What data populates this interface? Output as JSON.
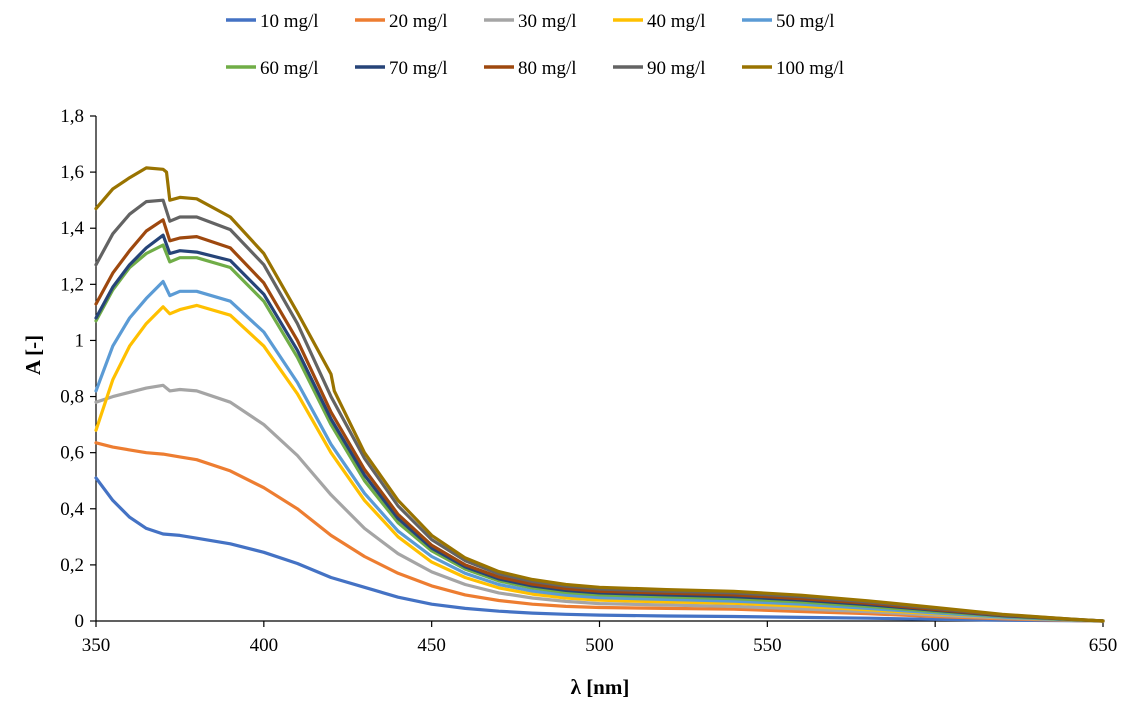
{
  "chart_data": {
    "type": "line",
    "title": "",
    "xlabel": "λ [nm]",
    "ylabel": "A [-]",
    "xlim": [
      350,
      650
    ],
    "ylim": [
      0,
      1.8
    ],
    "x_ticks": [
      "350",
      "400",
      "450",
      "500",
      "550",
      "600",
      "650"
    ],
    "y_ticks": [
      "0",
      "0,2",
      "0,4",
      "0,6",
      "0,8",
      "1",
      "1,2",
      "1,4",
      "1,6",
      "1,8"
    ],
    "grid": false,
    "legend_position": "top",
    "series": [
      {
        "name": "10 mg/l",
        "color": "#4472C4",
        "points": [
          [
            350,
            0.51
          ],
          [
            355,
            0.43
          ],
          [
            360,
            0.37
          ],
          [
            365,
            0.33
          ],
          [
            370,
            0.31
          ],
          [
            375,
            0.305
          ],
          [
            380,
            0.295
          ],
          [
            390,
            0.275
          ],
          [
            400,
            0.245
          ],
          [
            410,
            0.205
          ],
          [
            420,
            0.155
          ],
          [
            430,
            0.12
          ],
          [
            440,
            0.085
          ],
          [
            450,
            0.06
          ],
          [
            460,
            0.045
          ],
          [
            470,
            0.035
          ],
          [
            480,
            0.028
          ],
          [
            490,
            0.024
          ],
          [
            500,
            0.021
          ],
          [
            520,
            0.018
          ],
          [
            540,
            0.016
          ],
          [
            560,
            0.013
          ],
          [
            580,
            0.01
          ],
          [
            600,
            0.006
          ],
          [
            620,
            0.003
          ],
          [
            640,
            0.001
          ],
          [
            650,
            0.0
          ]
        ]
      },
      {
        "name": "20 mg/l",
        "color": "#ED7D31",
        "points": [
          [
            350,
            0.635
          ],
          [
            355,
            0.62
          ],
          [
            360,
            0.61
          ],
          [
            365,
            0.6
          ],
          [
            370,
            0.595
          ],
          [
            375,
            0.585
          ],
          [
            380,
            0.575
          ],
          [
            390,
            0.535
          ],
          [
            400,
            0.475
          ],
          [
            410,
            0.4
          ],
          [
            420,
            0.305
          ],
          [
            430,
            0.23
          ],
          [
            440,
            0.17
          ],
          [
            450,
            0.125
          ],
          [
            460,
            0.093
          ],
          [
            470,
            0.073
          ],
          [
            480,
            0.06
          ],
          [
            490,
            0.052
          ],
          [
            500,
            0.048
          ],
          [
            520,
            0.045
          ],
          [
            540,
            0.042
          ],
          [
            560,
            0.034
          ],
          [
            580,
            0.026
          ],
          [
            600,
            0.016
          ],
          [
            620,
            0.008
          ],
          [
            640,
            0.002
          ],
          [
            650,
            0.0
          ]
        ]
      },
      {
        "name": "30 mg/l",
        "color": "#A5A5A5",
        "points": [
          [
            350,
            0.78
          ],
          [
            355,
            0.8
          ],
          [
            360,
            0.815
          ],
          [
            365,
            0.83
          ],
          [
            370,
            0.84
          ],
          [
            372,
            0.82
          ],
          [
            375,
            0.825
          ],
          [
            380,
            0.82
          ],
          [
            390,
            0.78
          ],
          [
            400,
            0.7
          ],
          [
            410,
            0.59
          ],
          [
            420,
            0.45
          ],
          [
            430,
            0.33
          ],
          [
            440,
            0.24
          ],
          [
            450,
            0.175
          ],
          [
            460,
            0.13
          ],
          [
            470,
            0.1
          ],
          [
            480,
            0.082
          ],
          [
            490,
            0.07
          ],
          [
            500,
            0.062
          ],
          [
            520,
            0.057
          ],
          [
            540,
            0.052
          ],
          [
            560,
            0.043
          ],
          [
            580,
            0.033
          ],
          [
            600,
            0.021
          ],
          [
            620,
            0.011
          ],
          [
            640,
            0.003
          ],
          [
            650,
            0.0
          ]
        ]
      },
      {
        "name": "40 mg/l",
        "color": "#FFC000",
        "points": [
          [
            350,
            0.68
          ],
          [
            355,
            0.86
          ],
          [
            360,
            0.98
          ],
          [
            365,
            1.06
          ],
          [
            370,
            1.12
          ],
          [
            372,
            1.095
          ],
          [
            375,
            1.11
          ],
          [
            380,
            1.125
          ],
          [
            390,
            1.09
          ],
          [
            400,
            0.98
          ],
          [
            410,
            0.81
          ],
          [
            420,
            0.6
          ],
          [
            430,
            0.43
          ],
          [
            440,
            0.3
          ],
          [
            450,
            0.21
          ],
          [
            460,
            0.155
          ],
          [
            470,
            0.118
          ],
          [
            480,
            0.096
          ],
          [
            490,
            0.082
          ],
          [
            500,
            0.074
          ],
          [
            520,
            0.068
          ],
          [
            540,
            0.063
          ],
          [
            560,
            0.053
          ],
          [
            580,
            0.04
          ],
          [
            600,
            0.026
          ],
          [
            620,
            0.013
          ],
          [
            640,
            0.004
          ],
          [
            650,
            0.0
          ]
        ]
      },
      {
        "name": "50 mg/l",
        "color": "#5B9BD5",
        "points": [
          [
            350,
            0.82
          ],
          [
            355,
            0.98
          ],
          [
            360,
            1.08
          ],
          [
            365,
            1.15
          ],
          [
            370,
            1.21
          ],
          [
            372,
            1.16
          ],
          [
            375,
            1.175
          ],
          [
            380,
            1.175
          ],
          [
            390,
            1.14
          ],
          [
            400,
            1.03
          ],
          [
            410,
            0.85
          ],
          [
            420,
            0.63
          ],
          [
            430,
            0.455
          ],
          [
            440,
            0.32
          ],
          [
            450,
            0.23
          ],
          [
            460,
            0.17
          ],
          [
            470,
            0.13
          ],
          [
            480,
            0.107
          ],
          [
            490,
            0.092
          ],
          [
            500,
            0.083
          ],
          [
            520,
            0.077
          ],
          [
            540,
            0.071
          ],
          [
            560,
            0.06
          ],
          [
            580,
            0.045
          ],
          [
            600,
            0.029
          ],
          [
            620,
            0.014
          ],
          [
            640,
            0.004
          ],
          [
            650,
            0.0
          ]
        ]
      },
      {
        "name": "60 mg/l",
        "color": "#70AD47",
        "points": [
          [
            350,
            1.07
          ],
          [
            355,
            1.18
          ],
          [
            360,
            1.26
          ],
          [
            365,
            1.31
          ],
          [
            370,
            1.34
          ],
          [
            372,
            1.28
          ],
          [
            375,
            1.295
          ],
          [
            380,
            1.295
          ],
          [
            390,
            1.26
          ],
          [
            400,
            1.14
          ],
          [
            410,
            0.94
          ],
          [
            420,
            0.7
          ],
          [
            430,
            0.5
          ],
          [
            440,
            0.35
          ],
          [
            450,
            0.25
          ],
          [
            460,
            0.185
          ],
          [
            470,
            0.143
          ],
          [
            480,
            0.118
          ],
          [
            490,
            0.102
          ],
          [
            500,
            0.093
          ],
          [
            520,
            0.086
          ],
          [
            540,
            0.08
          ],
          [
            560,
            0.068
          ],
          [
            580,
            0.052
          ],
          [
            600,
            0.034
          ],
          [
            620,
            0.017
          ],
          [
            640,
            0.005
          ],
          [
            650,
            0.0
          ]
        ]
      },
      {
        "name": "70 mg/l",
        "color": "#264478",
        "points": [
          [
            350,
            1.08
          ],
          [
            355,
            1.19
          ],
          [
            360,
            1.27
          ],
          [
            365,
            1.33
          ],
          [
            370,
            1.375
          ],
          [
            372,
            1.31
          ],
          [
            375,
            1.32
          ],
          [
            380,
            1.315
          ],
          [
            390,
            1.285
          ],
          [
            400,
            1.165
          ],
          [
            410,
            0.965
          ],
          [
            420,
            0.72
          ],
          [
            430,
            0.52
          ],
          [
            440,
            0.365
          ],
          [
            450,
            0.26
          ],
          [
            460,
            0.193
          ],
          [
            470,
            0.15
          ],
          [
            480,
            0.125
          ],
          [
            490,
            0.109
          ],
          [
            500,
            0.1
          ],
          [
            520,
            0.093
          ],
          [
            540,
            0.087
          ],
          [
            560,
            0.075
          ],
          [
            580,
            0.058
          ],
          [
            600,
            0.038
          ],
          [
            620,
            0.019
          ],
          [
            640,
            0.006
          ],
          [
            650,
            0.0
          ]
        ]
      },
      {
        "name": "80 mg/l",
        "color": "#9E480E",
        "points": [
          [
            350,
            1.13
          ],
          [
            355,
            1.24
          ],
          [
            360,
            1.32
          ],
          [
            365,
            1.39
          ],
          [
            370,
            1.43
          ],
          [
            372,
            1.355
          ],
          [
            375,
            1.365
          ],
          [
            380,
            1.37
          ],
          [
            390,
            1.33
          ],
          [
            400,
            1.205
          ],
          [
            410,
            1.0
          ],
          [
            420,
            0.745
          ],
          [
            430,
            0.54
          ],
          [
            440,
            0.38
          ],
          [
            450,
            0.27
          ],
          [
            460,
            0.2
          ],
          [
            470,
            0.157
          ],
          [
            480,
            0.131
          ],
          [
            490,
            0.115
          ],
          [
            500,
            0.106
          ],
          [
            520,
            0.099
          ],
          [
            540,
            0.093
          ],
          [
            560,
            0.08
          ],
          [
            580,
            0.063
          ],
          [
            600,
            0.041
          ],
          [
            620,
            0.021
          ],
          [
            640,
            0.006
          ],
          [
            650,
            0.0
          ]
        ]
      },
      {
        "name": "90 mg/l",
        "color": "#636363",
        "points": [
          [
            350,
            1.27
          ],
          [
            355,
            1.38
          ],
          [
            360,
            1.45
          ],
          [
            365,
            1.495
          ],
          [
            370,
            1.5
          ],
          [
            372,
            1.425
          ],
          [
            375,
            1.44
          ],
          [
            380,
            1.44
          ],
          [
            390,
            1.395
          ],
          [
            400,
            1.27
          ],
          [
            410,
            1.06
          ],
          [
            420,
            0.8
          ],
          [
            430,
            0.58
          ],
          [
            440,
            0.41
          ],
          [
            450,
            0.29
          ],
          [
            460,
            0.215
          ],
          [
            470,
            0.168
          ],
          [
            480,
            0.141
          ],
          [
            490,
            0.124
          ],
          [
            500,
            0.114
          ],
          [
            520,
            0.106
          ],
          [
            540,
            0.1
          ],
          [
            560,
            0.087
          ],
          [
            580,
            0.068
          ],
          [
            600,
            0.045
          ],
          [
            620,
            0.022
          ],
          [
            640,
            0.007
          ],
          [
            650,
            0.0
          ]
        ]
      },
      {
        "name": "100 mg/l",
        "color": "#997300",
        "points": [
          [
            350,
            1.47
          ],
          [
            355,
            1.54
          ],
          [
            360,
            1.58
          ],
          [
            365,
            1.615
          ],
          [
            370,
            1.61
          ],
          [
            371,
            1.6
          ],
          [
            372,
            1.5
          ],
          [
            375,
            1.51
          ],
          [
            380,
            1.505
          ],
          [
            390,
            1.44
          ],
          [
            400,
            1.31
          ],
          [
            410,
            1.1
          ],
          [
            420,
            0.88
          ],
          [
            421,
            0.82
          ],
          [
            430,
            0.6
          ],
          [
            440,
            0.43
          ],
          [
            450,
            0.305
          ],
          [
            460,
            0.225
          ],
          [
            470,
            0.176
          ],
          [
            480,
            0.148
          ],
          [
            490,
            0.13
          ],
          [
            500,
            0.12
          ],
          [
            520,
            0.112
          ],
          [
            540,
            0.106
          ],
          [
            560,
            0.092
          ],
          [
            580,
            0.072
          ],
          [
            600,
            0.048
          ],
          [
            620,
            0.024
          ],
          [
            640,
            0.007
          ],
          [
            650,
            0.0
          ]
        ]
      }
    ]
  }
}
